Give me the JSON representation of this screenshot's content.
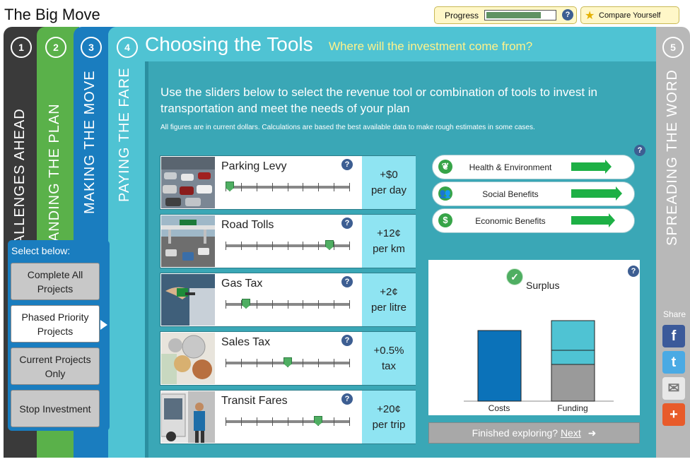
{
  "app": {
    "title": "The Big Move"
  },
  "progress": {
    "label": "Progress",
    "value": 0.8
  },
  "compare": {
    "label": "Compare Yourself"
  },
  "help_glyph": "?",
  "tabs": [
    {
      "num": "1",
      "label": "THE CHALLENGES AHEAD",
      "visible_label": "E CHALLENGES AHEAD"
    },
    {
      "num": "2",
      "label": "UNDERSTANDING THE PLAN",
      "visible_label": "ERSTANDING THE PLAN"
    },
    {
      "num": "3",
      "label": "MAKING THE MOVE"
    },
    {
      "num": "4",
      "label": "PAYING THE FARE"
    },
    {
      "num": "5",
      "label": "SPREADING THE WORD"
    }
  ],
  "header": {
    "title": "Choosing the Tools",
    "subtitle": "Where will the investment come from?"
  },
  "intro": {
    "text": "Use the sliders below to select the revenue tool or combination of tools to invest in transportation and meet the needs of your plan",
    "note": "All figures are in current dollars. Calculations are based the best available data to make rough estimates in some cases."
  },
  "tools": [
    {
      "name": "Parking Levy",
      "value": "+$0",
      "unit": "per day",
      "level": 0.0
    },
    {
      "name": "Road Tolls",
      "value": "+12¢",
      "unit": "per km",
      "level": 0.86
    },
    {
      "name": "Gas Tax",
      "value": "+2¢",
      "unit": "per litre",
      "level": 0.14
    },
    {
      "name": "Sales Tax",
      "value": "+0.5%",
      "unit": "tax",
      "level": 0.5
    },
    {
      "name": "Transit Fares",
      "value": "+20¢",
      "unit": "per trip",
      "level": 0.76
    }
  ],
  "benefits": [
    {
      "label": "Health & Environment",
      "level": 0.55,
      "icon": "leaf-icon"
    },
    {
      "label": "Social Benefits",
      "level": 0.85,
      "icon": "people-icon"
    },
    {
      "label": "Economic Benefits",
      "level": 0.65,
      "icon": "dollar-icon"
    }
  ],
  "chart": {
    "status": "Surplus",
    "costs_label": "Costs",
    "funding_label": "Funding",
    "costs": 100,
    "funding_segments": [
      42,
      20,
      52
    ],
    "colors": {
      "costs": "#0b72b9",
      "funding_top": "#4fc3d3",
      "funding_mid": "#4fc3d3",
      "funding_bottom": "#9a9a9a"
    }
  },
  "chart_data": {
    "type": "bar",
    "categories": [
      "Costs",
      "Funding"
    ],
    "series": [
      {
        "values": [
          100,
          0
        ]
      },
      {
        "values": [
          0,
          52
        ]
      },
      {
        "values": [
          0,
          20
        ]
      },
      {
        "values": [
          0,
          42
        ]
      }
    ],
    "title": "Surplus"
  },
  "finished": {
    "text": "Finished exploring?",
    "link": "Next",
    "arrow": "➜"
  },
  "select_panel": {
    "label": "Select below:",
    "options": [
      "Complete All Projects",
      "Phased Priority Projects",
      "Current Projects Only",
      "Stop Investment"
    ],
    "active_index": 1
  },
  "share": {
    "label": "Share",
    "buttons": [
      "facebook",
      "twitter",
      "email",
      "google-plus"
    ]
  },
  "colors": {
    "dark_tab": "#3a3a3a",
    "green_tab": "#5ab14a",
    "blue_tab": "#1a7dbf",
    "teal_tab": "#4fc3d3",
    "slider_thumb": "#4fae62",
    "benefit_arrow": "#1db045"
  }
}
